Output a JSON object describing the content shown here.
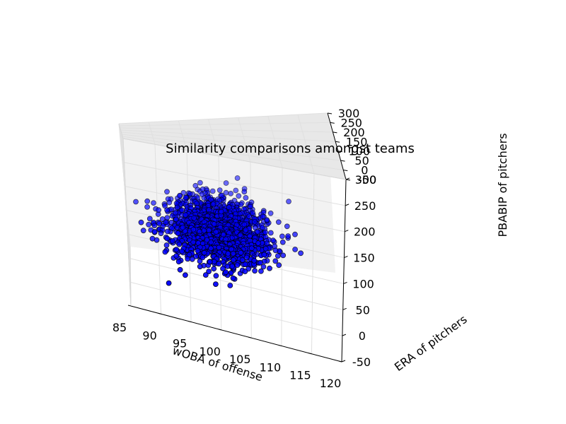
{
  "chart_data": {
    "type": "scatter",
    "projection": "3d",
    "title": "Similarity comparisons amongst teams",
    "xlabel": "wOBA of offense",
    "ylabel": "ERA of pitchers",
    "zlabel": "PBABIP of pitchers",
    "xlim": [
      85,
      120
    ],
    "ylim": [
      -50,
      300
    ],
    "zlim": [
      -50,
      300
    ],
    "xticks": [
      "85",
      "90",
      "95",
      "100",
      "105",
      "110",
      "115",
      "120"
    ],
    "yticks": [
      "-50",
      "0",
      "50",
      "100",
      "150",
      "200",
      "250",
      "300"
    ],
    "zticks": [
      "-50",
      "0",
      "50",
      "100",
      "150",
      "200",
      "250",
      "300"
    ],
    "grid": true,
    "marker_color": "#0000ff",
    "marker_edge_color": "#000000",
    "point_count": 1800,
    "distribution": {
      "x": {
        "mean": 100,
        "sd": 4.0
      },
      "y": {
        "mean": 100,
        "sd": 35
      },
      "z": {
        "mean": 95,
        "sd": 22
      }
    }
  }
}
